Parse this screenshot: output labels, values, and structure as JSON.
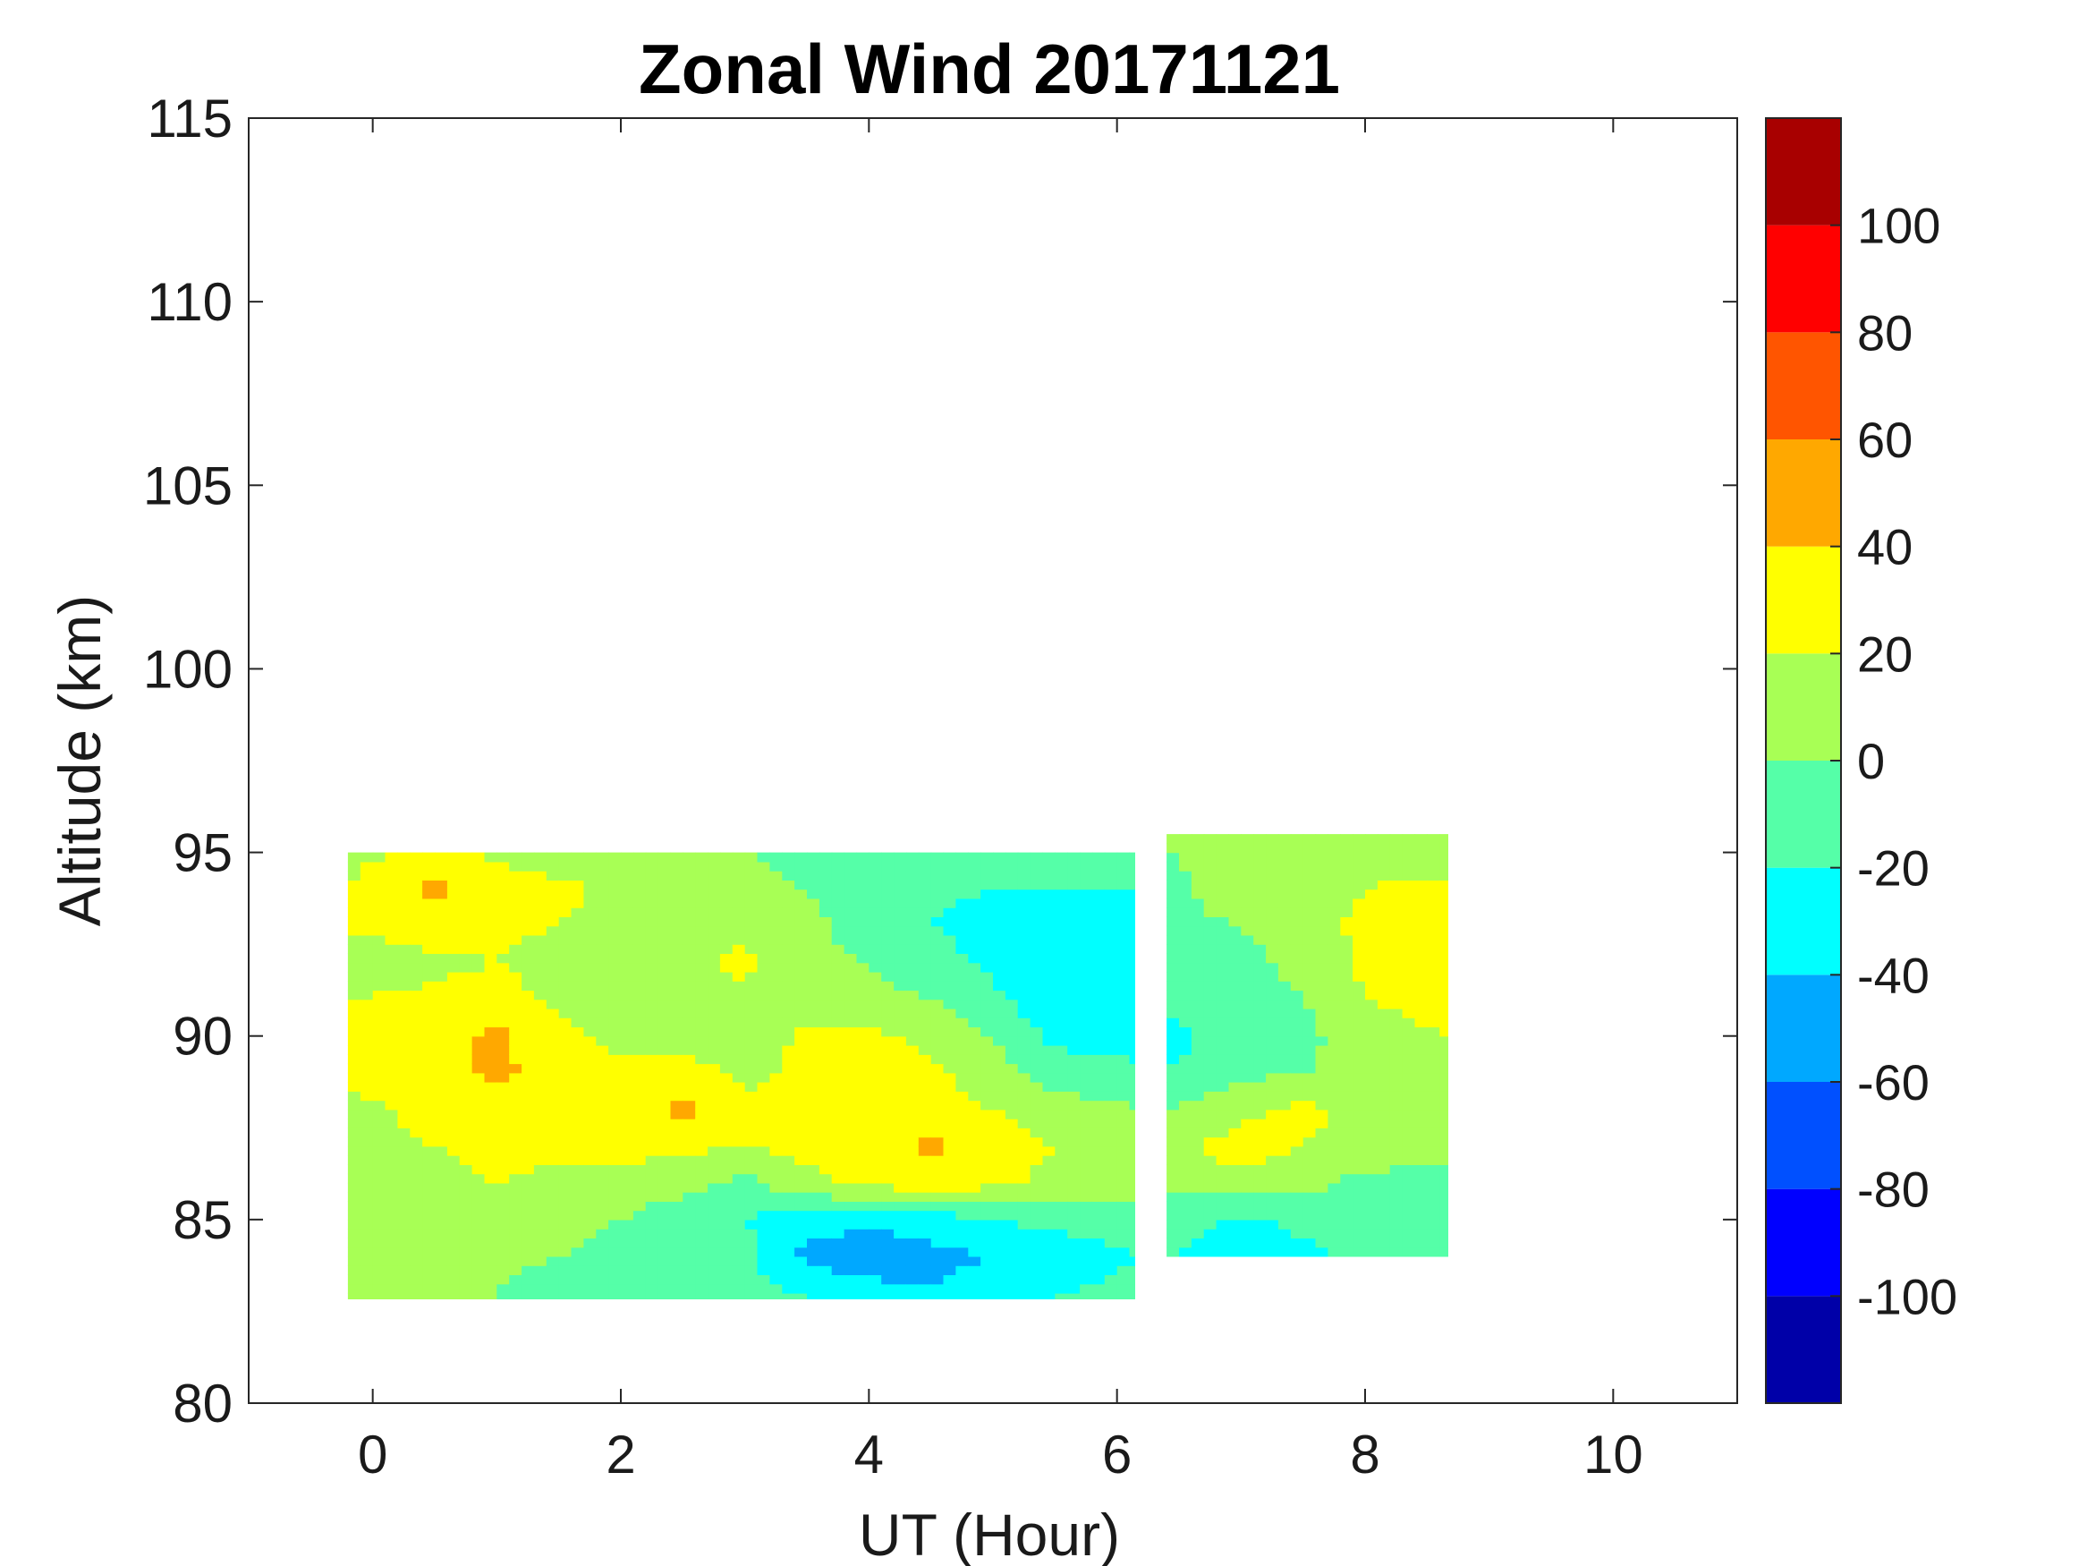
{
  "chart_data": {
    "type": "heatmap",
    "title": "Zonal Wind 20171121",
    "xlabel": "UT (Hour)",
    "ylabel": "Altitude (km)",
    "xlim": [
      -1,
      11
    ],
    "ylim": [
      80,
      115
    ],
    "xticks": [
      0,
      2,
      4,
      6,
      8,
      10
    ],
    "yticks": [
      80,
      85,
      90,
      95,
      100,
      105,
      110,
      115
    ],
    "colorbar": {
      "range": [
        -120,
        120
      ],
      "ticks": [
        -100,
        -80,
        -60,
        -40,
        -20,
        0,
        20,
        40,
        60,
        80,
        100
      ],
      "bins": [
        {
          "lo": -120,
          "hi": -100,
          "color": "#0000a8"
        },
        {
          "lo": -100,
          "hi": -80,
          "color": "#0000ff"
        },
        {
          "lo": -80,
          "hi": -60,
          "color": "#0050ff"
        },
        {
          "lo": -60,
          "hi": -40,
          "color": "#00a8ff"
        },
        {
          "lo": -40,
          "hi": -20,
          "color": "#00ffff"
        },
        {
          "lo": -20,
          "hi": 0,
          "color": "#55ffa8"
        },
        {
          "lo": 0,
          "hi": 20,
          "color": "#a8ff55"
        },
        {
          "lo": 20,
          "hi": 40,
          "color": "#ffff00"
        },
        {
          "lo": 40,
          "hi": 60,
          "color": "#ffa800"
        },
        {
          "lo": 60,
          "hi": 80,
          "color": "#ff5500"
        },
        {
          "lo": 80,
          "hi": 100,
          "color": "#ff0000"
        },
        {
          "lo": 100,
          "hi": 120,
          "color": "#a80000"
        }
      ]
    },
    "coverage": [
      {
        "ut_range": [
          -0.2,
          6.2
        ],
        "alt_range": [
          82.5,
          95
        ]
      },
      {
        "ut_range": [
          6.4,
          8.7
        ],
        "alt_range": [
          84,
          95.5
        ]
      }
    ],
    "ut_samples": [
      -0.2,
      0.5,
      1.0,
      1.5,
      2.0,
      2.5,
      3.0,
      3.5,
      4.0,
      4.5,
      5.0,
      5.5,
      6.2,
      6.4,
      7.0,
      7.5,
      8.0,
      8.7
    ],
    "alt_samples": [
      83,
      84,
      85,
      86,
      87,
      88,
      89,
      90,
      91,
      92,
      93,
      94,
      95
    ],
    "wind_ms": [
      [
        0,
        0,
        0,
        -10,
        -10,
        -5,
        -15,
        -20,
        -30,
        -40,
        -30,
        -20,
        -15,
        -10,
        -20,
        -20,
        -15,
        -10
      ],
      [
        5,
        0,
        5,
        0,
        -5,
        -5,
        -15,
        -45,
        -55,
        -45,
        -40,
        -30,
        -20,
        -20,
        -35,
        -25,
        -15,
        -15
      ],
      [
        10,
        5,
        10,
        5,
        0,
        -10,
        -20,
        -30,
        -35,
        -30,
        -20,
        -15,
        -10,
        -10,
        -25,
        -15,
        -5,
        -10
      ],
      [
        20,
        15,
        20,
        15,
        10,
        5,
        -5,
        15,
        25,
        30,
        25,
        15,
        10,
        5,
        15,
        5,
        -5,
        -5
      ],
      [
        15,
        20,
        25,
        25,
        30,
        25,
        20,
        25,
        25,
        45,
        30,
        20,
        10,
        10,
        30,
        20,
        10,
        5
      ],
      [
        15,
        25,
        30,
        35,
        30,
        45,
        25,
        25,
        30,
        25,
        20,
        10,
        0,
        0,
        15,
        25,
        15,
        5
      ],
      [
        25,
        30,
        45,
        30,
        25,
        30,
        15,
        25,
        30,
        25,
        10,
        -10,
        -15,
        -20,
        -5,
        0,
        5,
        10
      ],
      [
        25,
        30,
        45,
        25,
        15,
        10,
        5,
        25,
        25,
        15,
        0,
        -25,
        -30,
        -25,
        -15,
        -5,
        10,
        20
      ],
      [
        20,
        25,
        30,
        15,
        10,
        5,
        15,
        10,
        5,
        0,
        -15,
        -35,
        -35,
        -15,
        -10,
        0,
        20,
        30
      ],
      [
        5,
        15,
        20,
        10,
        5,
        15,
        25,
        5,
        0,
        -10,
        -25,
        -40,
        -40,
        -10,
        -5,
        5,
        25,
        35
      ],
      [
        25,
        30,
        25,
        20,
        10,
        5,
        15,
        5,
        -10,
        -20,
        -30,
        -25,
        -25,
        -5,
        0,
        10,
        25,
        30
      ],
      [
        20,
        45,
        30,
        25,
        15,
        10,
        5,
        0,
        -10,
        -15,
        -20,
        -20,
        -20,
        -5,
        10,
        15,
        20,
        25
      ],
      [
        15,
        25,
        15,
        10,
        5,
        0,
        0,
        -5,
        -10,
        -10,
        -10,
        -10,
        -5,
        0,
        5,
        10,
        15,
        10
      ]
    ]
  }
}
